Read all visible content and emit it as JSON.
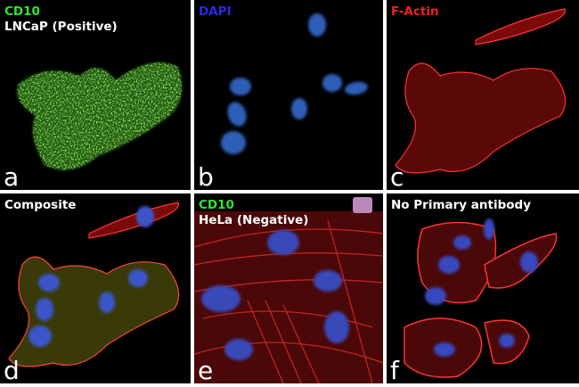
{
  "panels": [
    {
      "labels": [
        "CD10",
        "LNCaP (Positive)"
      ],
      "letter": "a"
    },
    {
      "labels": [
        "DAPI"
      ],
      "letter": "b"
    },
    {
      "labels": [
        "F-Actin"
      ],
      "letter": "c"
    },
    {
      "labels": [
        "Composite"
      ],
      "letter": "d"
    },
    {
      "labels": [
        "CD10",
        "HeLa (Negative)"
      ],
      "letter": "e"
    },
    {
      "labels": [
        "No Primary antibody"
      ],
      "letter": "f"
    }
  ]
}
